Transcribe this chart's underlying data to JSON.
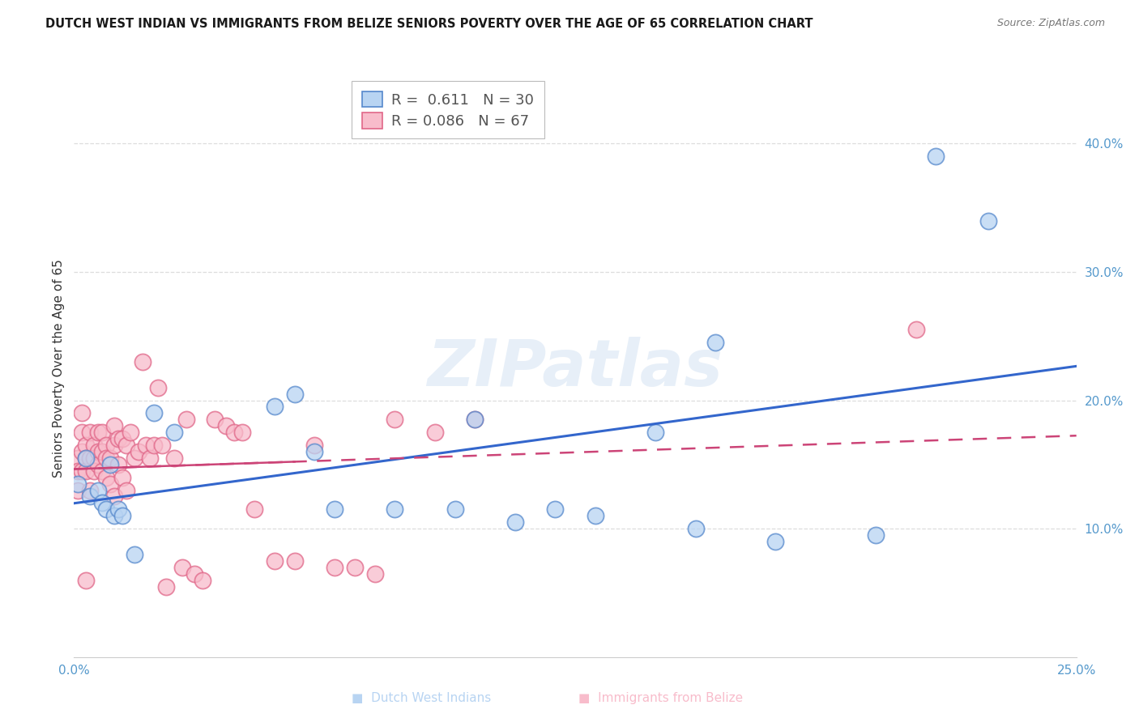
{
  "title": "DUTCH WEST INDIAN VS IMMIGRANTS FROM BELIZE SENIORS POVERTY OVER THE AGE OF 65 CORRELATION CHART",
  "source": "Source: ZipAtlas.com",
  "ylabel": "Seniors Poverty Over the Age of 65",
  "xlim": [
    0.0,
    0.25
  ],
  "ylim": [
    0.0,
    0.45
  ],
  "bg_color": "#ffffff",
  "grid_color": "#dddddd",
  "watermark": "ZIPatlas",
  "blue_R": "0.611",
  "blue_N": "30",
  "pink_R": "0.086",
  "pink_N": "67",
  "blue_scatter_color": "#b8d4f2",
  "blue_edge_color": "#5588cc",
  "pink_scatter_color": "#f8bccb",
  "pink_edge_color": "#e06688",
  "blue_line_color": "#3366cc",
  "pink_line_color": "#cc4477",
  "blue_label": "Dutch West Indians",
  "pink_label": "Immigrants from Belize",
  "blue_x": [
    0.001,
    0.003,
    0.004,
    0.006,
    0.007,
    0.008,
    0.009,
    0.01,
    0.011,
    0.012,
    0.015,
    0.02,
    0.025,
    0.05,
    0.055,
    0.06,
    0.065,
    0.08,
    0.095,
    0.1,
    0.11,
    0.12,
    0.13,
    0.145,
    0.155,
    0.16,
    0.175,
    0.2,
    0.215,
    0.228
  ],
  "blue_y": [
    0.135,
    0.155,
    0.125,
    0.13,
    0.12,
    0.115,
    0.15,
    0.11,
    0.115,
    0.11,
    0.08,
    0.19,
    0.175,
    0.195,
    0.205,
    0.16,
    0.115,
    0.115,
    0.115,
    0.185,
    0.105,
    0.115,
    0.11,
    0.175,
    0.1,
    0.245,
    0.09,
    0.095,
    0.39,
    0.34
  ],
  "pink_x": [
    0.001,
    0.001,
    0.001,
    0.002,
    0.002,
    0.002,
    0.002,
    0.003,
    0.003,
    0.003,
    0.003,
    0.004,
    0.004,
    0.004,
    0.005,
    0.005,
    0.005,
    0.006,
    0.006,
    0.006,
    0.007,
    0.007,
    0.007,
    0.008,
    0.008,
    0.008,
    0.009,
    0.009,
    0.01,
    0.01,
    0.01,
    0.011,
    0.011,
    0.012,
    0.012,
    0.013,
    0.013,
    0.014,
    0.015,
    0.016,
    0.017,
    0.018,
    0.019,
    0.02,
    0.021,
    0.022,
    0.023,
    0.025,
    0.027,
    0.028,
    0.03,
    0.032,
    0.035,
    0.038,
    0.04,
    0.042,
    0.045,
    0.05,
    0.055,
    0.06,
    0.065,
    0.07,
    0.075,
    0.08,
    0.09,
    0.1,
    0.21
  ],
  "pink_y": [
    0.155,
    0.145,
    0.13,
    0.16,
    0.19,
    0.175,
    0.145,
    0.165,
    0.155,
    0.145,
    0.06,
    0.175,
    0.155,
    0.13,
    0.165,
    0.155,
    0.145,
    0.175,
    0.16,
    0.15,
    0.175,
    0.16,
    0.145,
    0.165,
    0.155,
    0.14,
    0.155,
    0.135,
    0.18,
    0.165,
    0.125,
    0.17,
    0.15,
    0.17,
    0.14,
    0.165,
    0.13,
    0.175,
    0.155,
    0.16,
    0.23,
    0.165,
    0.155,
    0.165,
    0.21,
    0.165,
    0.055,
    0.155,
    0.07,
    0.185,
    0.065,
    0.06,
    0.185,
    0.18,
    0.175,
    0.175,
    0.115,
    0.075,
    0.075,
    0.165,
    0.07,
    0.07,
    0.065,
    0.185,
    0.175,
    0.185,
    0.255
  ]
}
